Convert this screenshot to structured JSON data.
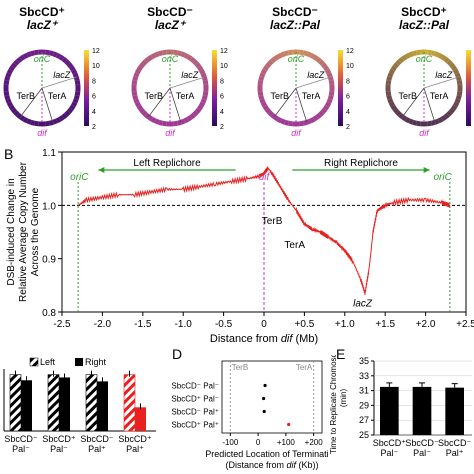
{
  "panelA": {
    "circles": [
      {
        "line1": "SbcCD⁺",
        "line2": "lacZ⁺"
      },
      {
        "line1": "SbcCD⁻",
        "line2": "lacZ⁺"
      },
      {
        "line1": "SbcCD⁻",
        "line2": "lacZ::Pal"
      },
      {
        "line1": "SbcCD⁺",
        "line2": "lacZ::Pal"
      }
    ],
    "labels": {
      "oric": "oriC",
      "lacz": "lacZ",
      "terb": "TerB",
      "tera": "TerA",
      "dif": "dif"
    },
    "colorbar_ticks": [
      "12",
      "10",
      "8",
      "6",
      "4",
      "2"
    ],
    "colors": {
      "oric": "#2ca02c",
      "dif": "#cc33cc",
      "ring_low": "#3b0a6e",
      "ring_high": "#f6d62b"
    }
  },
  "panelB": {
    "letter": "B",
    "ylabel_lines": [
      "DSB-induced Change in",
      "Relative Average Copy Number",
      "Across the Genome"
    ],
    "xlabel_prefix": "Distance from ",
    "xlabel_italic": "dif",
    "xlabel_suffix": " (Mb)",
    "left_replichore": "Left Replichore",
    "right_replichore": "Right Replichore",
    "oric_label": "oriC",
    "dif_label": "dif",
    "terb_label": "TerB",
    "tera_label": "TerA",
    "lacz_label": "lacZ"
  },
  "chart_data": [
    {
      "type": "line",
      "panel": "B",
      "xlabel": "Distance from dif (Mb)",
      "ylabel": "DSB-induced Change in Relative Average Copy Number Across the Genome",
      "xlim": [
        -2.5,
        2.5
      ],
      "ylim": [
        0.8,
        1.1
      ],
      "x_ticks": [
        "-2.5",
        "-2.0",
        "-1.5",
        "-1.0",
        "-0.5",
        "0",
        "+0.5",
        "+1.0",
        "+1.5",
        "+2.0",
        "+2.5"
      ],
      "y_ticks": [
        "0.8",
        "0.9",
        "1.0",
        "1.1"
      ],
      "reference_line": 1.0,
      "series": [
        {
          "color": "#e8201f",
          "x": [
            -2.3,
            -2.2,
            -2.0,
            -1.8,
            -1.6,
            -1.4,
            -1.2,
            -1.0,
            -0.8,
            -0.6,
            -0.4,
            -0.2,
            -0.05,
            0.0,
            0.05,
            0.1,
            0.2,
            0.3,
            0.4,
            0.5,
            0.6,
            0.7,
            0.8,
            0.9,
            1.0,
            1.1,
            1.2,
            1.25,
            1.3,
            1.35,
            1.4,
            1.5,
            1.6,
            1.8,
            2.0,
            2.2,
            2.3
          ],
          "y": [
            1.0,
            1.01,
            1.015,
            1.02,
            1.02,
            1.025,
            1.03,
            1.03,
            1.035,
            1.04,
            1.045,
            1.05,
            1.055,
            1.06,
            1.07,
            1.06,
            1.035,
            1.01,
            0.99,
            0.965,
            0.955,
            0.95,
            0.94,
            0.93,
            0.915,
            0.895,
            0.86,
            0.835,
            0.88,
            0.95,
            0.99,
            1.0,
            1.005,
            1.01,
            1.01,
            1.005,
            1.0
          ]
        }
      ]
    },
    {
      "type": "bar",
      "panel": "C",
      "categories": [
        "SbcCD⁻ Pal⁻",
        "SbcCD⁺ Pal⁻",
        "SbcCD⁻ Pal⁺",
        "SbcCD⁺ Pal⁺"
      ],
      "series": [
        {
          "name": "Left",
          "values": [
            1.0,
            1.0,
            1.0,
            1.0
          ]
        },
        {
          "name": "Right",
          "values": [
            0.9,
            0.95,
            0.88,
            0.42
          ]
        }
      ],
      "ylim": [
        0,
        1.1
      ]
    },
    {
      "type": "scatter",
      "panel": "D",
      "letter": "D",
      "xlabel_line1": "Predicted Location of Termination",
      "xlabel_line2_prefix": "(Distance from ",
      "xlabel_line2_italic": "dif",
      "xlabel_line2_suffix": " (Kb))",
      "x_ticks": [
        "-100",
        "0",
        "+100",
        "+200"
      ],
      "xlim": [
        -130,
        230
      ],
      "region_labels": [
        "TerB",
        "TerA"
      ],
      "categories": [
        "SbcCD⁻ Pal⁻",
        "SbcCD⁺ Pal⁻",
        "SbcCD⁻ Pal⁺",
        "SbcCD⁺ Pal⁺"
      ],
      "values": [
        25,
        20,
        22,
        110
      ],
      "colors": [
        "#000000",
        "#000000",
        "#000000",
        "#e8201f"
      ]
    },
    {
      "type": "bar",
      "panel": "E",
      "letter": "E",
      "ylabel": "Time to Replicate Chromosome (min)",
      "y_ticks": [
        "25",
        "27",
        "29",
        "31",
        "33",
        "35"
      ],
      "ylim": [
        25,
        35
      ],
      "categories": [
        "SbcCD⁺ Pal⁻",
        "SbcCD⁻ Pal⁻",
        "SbcCD⁻ Pal⁺"
      ],
      "values": [
        31.5,
        31.5,
        31.4
      ]
    }
  ],
  "panelC_legend": {
    "left": "Left",
    "right": "Right"
  }
}
